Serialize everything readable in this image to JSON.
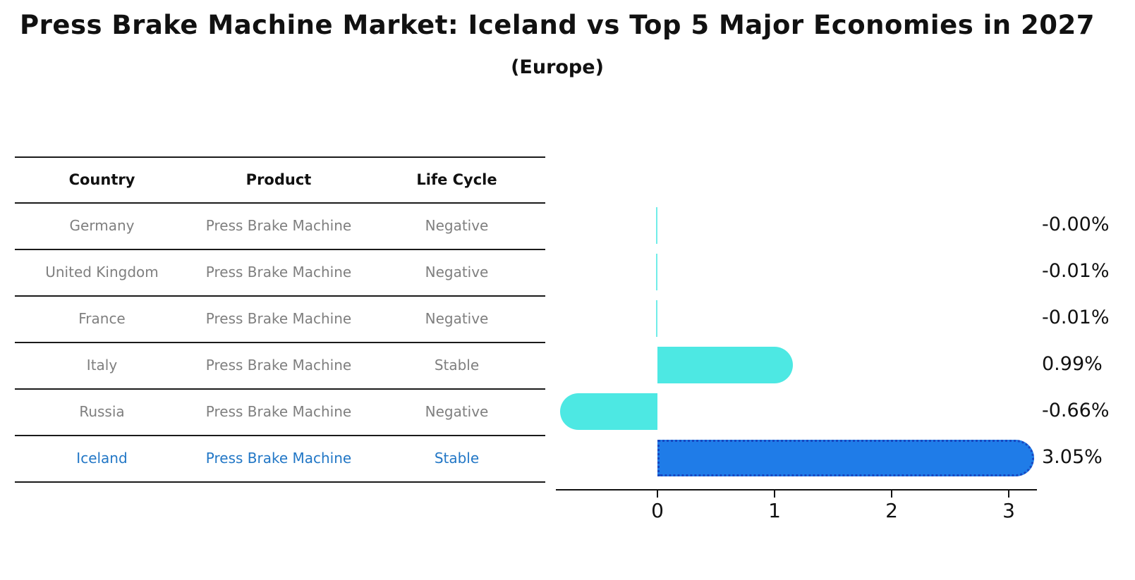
{
  "title": "Press Brake Machine Market: Iceland vs Top 5 Major Economies in 2027",
  "subtitle": "(Europe)",
  "table": {
    "headers": [
      "Country",
      "Product",
      "Life Cycle"
    ],
    "rows": [
      {
        "country": "Germany",
        "product": "Press Brake Machine",
        "life_cycle": "Negative"
      },
      {
        "country": "United Kingdom",
        "product": "Press Brake Machine",
        "life_cycle": "Negative"
      },
      {
        "country": "France",
        "product": "Press Brake Machine",
        "life_cycle": "Negative"
      },
      {
        "country": "Italy",
        "product": "Press Brake Machine",
        "life_cycle": "Stable"
      },
      {
        "country": "Russia",
        "product": "Press Brake Machine",
        "life_cycle": "Negative"
      },
      {
        "country": "Iceland",
        "product": "Press Brake Machine",
        "life_cycle": "Stable"
      }
    ],
    "highlight_row": "Iceland"
  },
  "chart_data": {
    "type": "bar",
    "orientation": "horizontal",
    "categories": [
      "Germany",
      "United Kingdom",
      "France",
      "Italy",
      "Russia",
      "Iceland"
    ],
    "values": [
      -0.0,
      -0.01,
      -0.01,
      0.99,
      -0.66,
      3.05
    ],
    "value_labels": [
      "-0.00%",
      "-0.01%",
      "-0.01%",
      "0.99%",
      "-0.66%",
      "3.05%"
    ],
    "x_ticks": [
      "0",
      "1",
      "2",
      "3"
    ],
    "x_tick_values": [
      0,
      1,
      2,
      3
    ],
    "xlim": [
      -0.87,
      3.24
    ],
    "grid": false,
    "legend": "none",
    "highlight_index": 5,
    "colors": {
      "default_bar": "#4de8e3",
      "highlight_bar": "#1f7ce8",
      "highlight_border": "#1847c0",
      "axis": "#111111",
      "value_label_text": "#111111",
      "table_text": "#7f7f7f",
      "table_highlight_text": "#2277c6"
    }
  }
}
